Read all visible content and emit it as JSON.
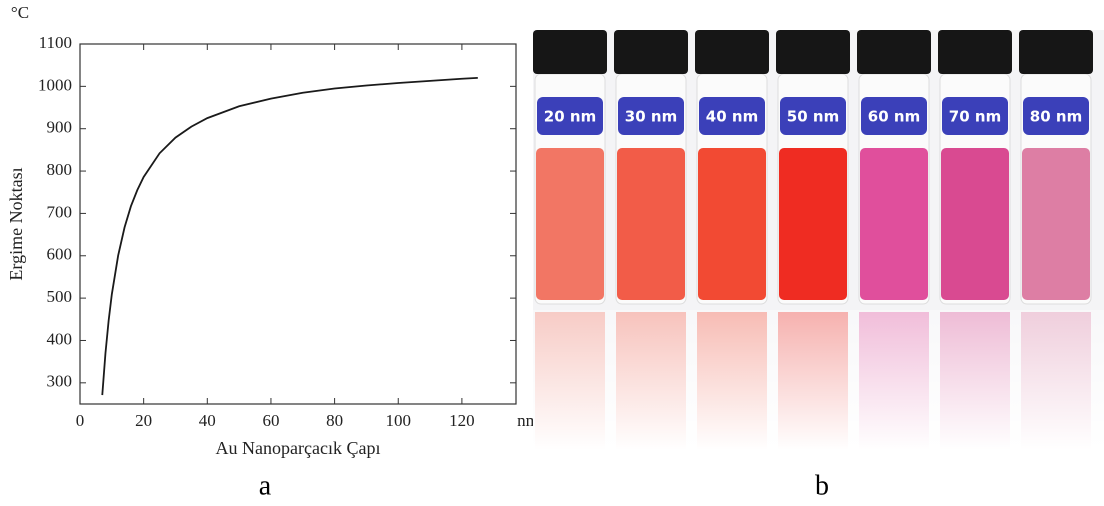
{
  "chart_data": {
    "type": "line",
    "x_label": "Au Nanoparçacık Çapı",
    "y_label": "Ergime Noktası",
    "x_unit": "nm",
    "y_unit": "°C",
    "x": [
      7,
      8,
      9,
      10,
      12,
      14,
      16,
      18,
      20,
      25,
      30,
      35,
      40,
      50,
      60,
      70,
      80,
      90,
      100,
      110,
      120,
      125
    ],
    "values": [
      271,
      370,
      447,
      509,
      601,
      667,
      717,
      755,
      786,
      842,
      879,
      905,
      925,
      953,
      971,
      985,
      995,
      1002,
      1008,
      1013,
      1018,
      1020
    ],
    "color": "#1a1a1a",
    "xlim": [
      0,
      137
    ],
    "ylim": [
      250,
      1100
    ],
    "xticks": [
      0,
      20,
      40,
      60,
      80,
      100,
      120
    ],
    "yticks": [
      300,
      400,
      500,
      600,
      700,
      800,
      900,
      1000,
      1100
    ],
    "grid": false
  },
  "photo": {
    "vials": [
      "20 nm",
      "30 nm",
      "40 nm",
      "50 nm",
      "60 nm",
      "70 nm",
      "80 nm"
    ]
  },
  "panel_labels": [
    "a",
    "b"
  ]
}
